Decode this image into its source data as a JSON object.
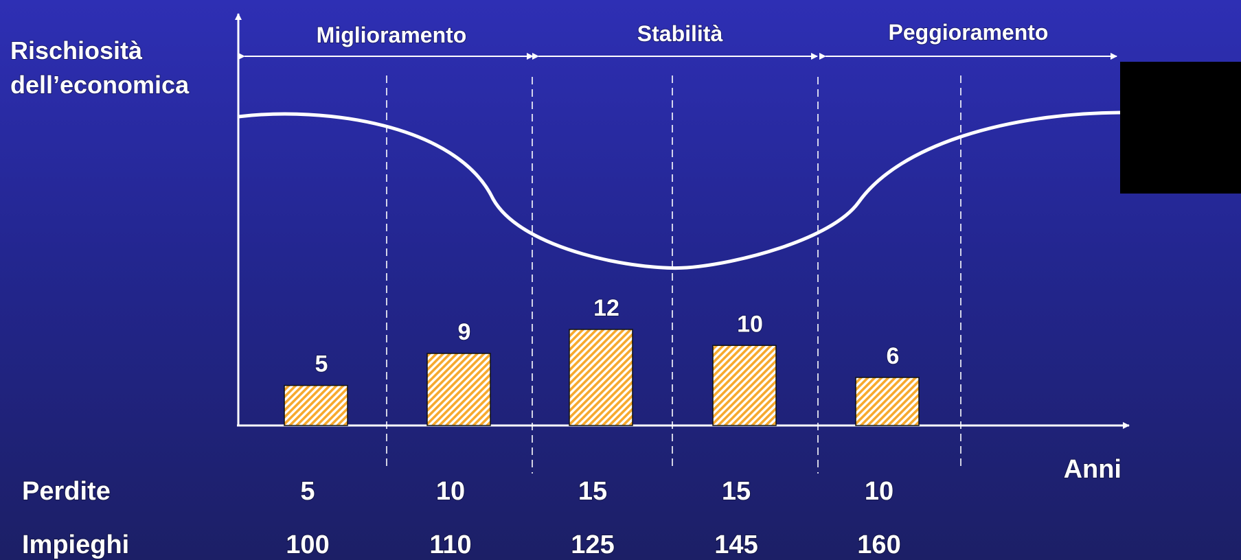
{
  "chart_data": {
    "type": "bar",
    "ylabel_line1": "Rischiosità",
    "ylabel_line2": "dell’economica",
    "xlabel": "Anni",
    "phases": [
      "Miglioramento",
      "Stabilità",
      "Peggioramento"
    ],
    "categories": [
      "",
      "",
      "",
      "",
      ""
    ],
    "values": [
      5,
      9,
      12,
      10,
      6
    ],
    "value_labels": [
      "5",
      "9",
      "12",
      "10",
      "6"
    ],
    "ylim": [
      0,
      12
    ],
    "risk_curve": "U-shaped curve: high, falling through Miglioramento, lowest in Stabilità, rising in Peggioramento",
    "bar_color": "#f6a92e",
    "table_rows": [
      {
        "label": "Perdite",
        "values": [
          "5",
          "10",
          "15",
          "15",
          "10"
        ]
      },
      {
        "label": "Impieghi",
        "values": [
          "100",
          "110",
          "125",
          "145",
          "160"
        ]
      }
    ]
  }
}
